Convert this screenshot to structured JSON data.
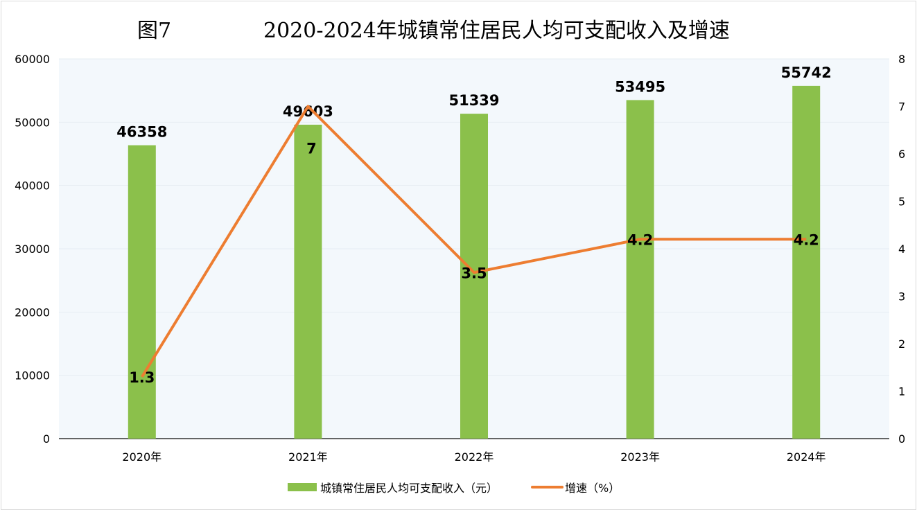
{
  "chart_data": {
    "type": "bar+line",
    "figure_label": "图7",
    "title": "2020-2024年城镇常住居民人均可支配收入及增速",
    "categories": [
      "2020年",
      "2021年",
      "2022年",
      "2023年",
      "2024年"
    ],
    "series": [
      {
        "name": "城镇常住居民人均可支配收入（元）",
        "type": "bar",
        "axis": "left",
        "color": "#8BC04B",
        "values": [
          46358,
          49603,
          51339,
          53495,
          55742
        ],
        "labels": [
          "46358",
          "49603",
          "51339",
          "53495",
          "55742"
        ]
      },
      {
        "name": "增速（%）",
        "type": "line",
        "axis": "right",
        "color": "#ED7D31",
        "values": [
          1.3,
          7,
          3.5,
          4.2,
          4.2
        ],
        "labels": [
          "1.3",
          "7",
          "3.5",
          "4.2",
          "4.2"
        ]
      }
    ],
    "y_left": {
      "range": [
        0,
        60000
      ],
      "ticks": [
        "0",
        "10000",
        "20000",
        "30000",
        "40000",
        "50000",
        "60000"
      ]
    },
    "y_right": {
      "range": [
        0,
        8
      ],
      "ticks": [
        "0",
        "1",
        "2",
        "3",
        "4",
        "5",
        "6",
        "7",
        "8"
      ]
    },
    "grid": true,
    "plot_background": "#F3F8FC",
    "legend_position": "bottom"
  }
}
